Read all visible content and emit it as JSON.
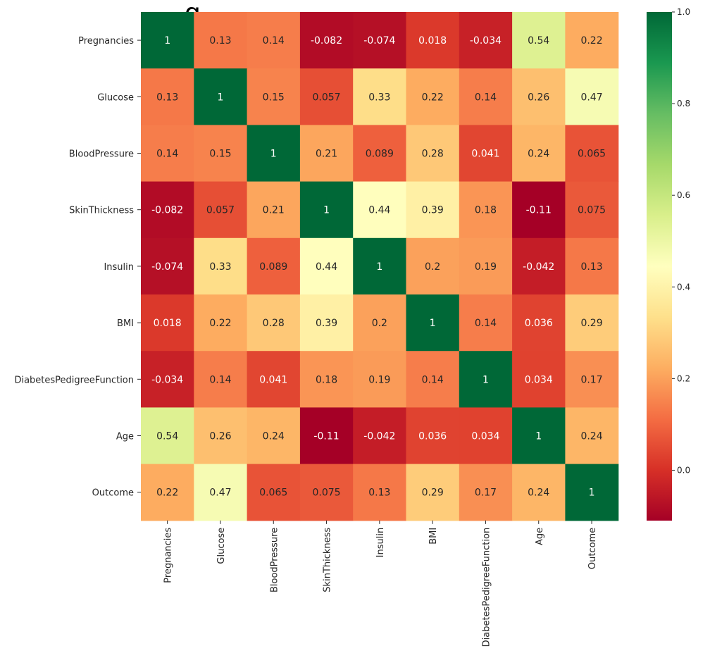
{
  "title_fragment": "g",
  "chart_data": {
    "type": "heatmap",
    "colormap": "RdYlGn",
    "labels": [
      "Pregnancies",
      "Glucose",
      "BloodPressure",
      "SkinThickness",
      "Insulin",
      "BMI",
      "DiabetesPedigreeFunction",
      "Age",
      "Outcome"
    ],
    "matrix": [
      [
        1,
        0.13,
        0.14,
        -0.082,
        -0.074,
        0.018,
        -0.034,
        0.54,
        0.22
      ],
      [
        0.13,
        1,
        0.15,
        0.057,
        0.33,
        0.22,
        0.14,
        0.26,
        0.47
      ],
      [
        0.14,
        0.15,
        1,
        0.21,
        0.089,
        0.28,
        0.041,
        0.24,
        0.065
      ],
      [
        -0.082,
        0.057,
        0.21,
        1,
        0.44,
        0.39,
        0.18,
        -0.11,
        0.075
      ],
      [
        -0.074,
        0.33,
        0.089,
        0.44,
        1,
        0.2,
        0.19,
        -0.042,
        0.13
      ],
      [
        0.018,
        0.22,
        0.28,
        0.39,
        0.2,
        1,
        0.14,
        0.036,
        0.29
      ],
      [
        -0.034,
        0.14,
        0.041,
        0.18,
        0.19,
        0.14,
        1,
        0.034,
        0.17
      ],
      [
        0.54,
        0.26,
        0.24,
        -0.11,
        -0.042,
        0.036,
        0.034,
        1,
        0.24
      ],
      [
        0.22,
        0.47,
        0.065,
        0.075,
        0.13,
        0.29,
        0.17,
        0.24,
        1
      ]
    ],
    "vmin": -0.11,
    "vmax": 1.0,
    "colorbar_ticks": [
      "1.0",
      "0.8",
      "0.6",
      "0.4",
      "0.2",
      "0.0"
    ],
    "colorbar_tick_values": [
      1.0,
      0.8,
      0.6,
      0.4,
      0.2,
      0.0
    ]
  }
}
